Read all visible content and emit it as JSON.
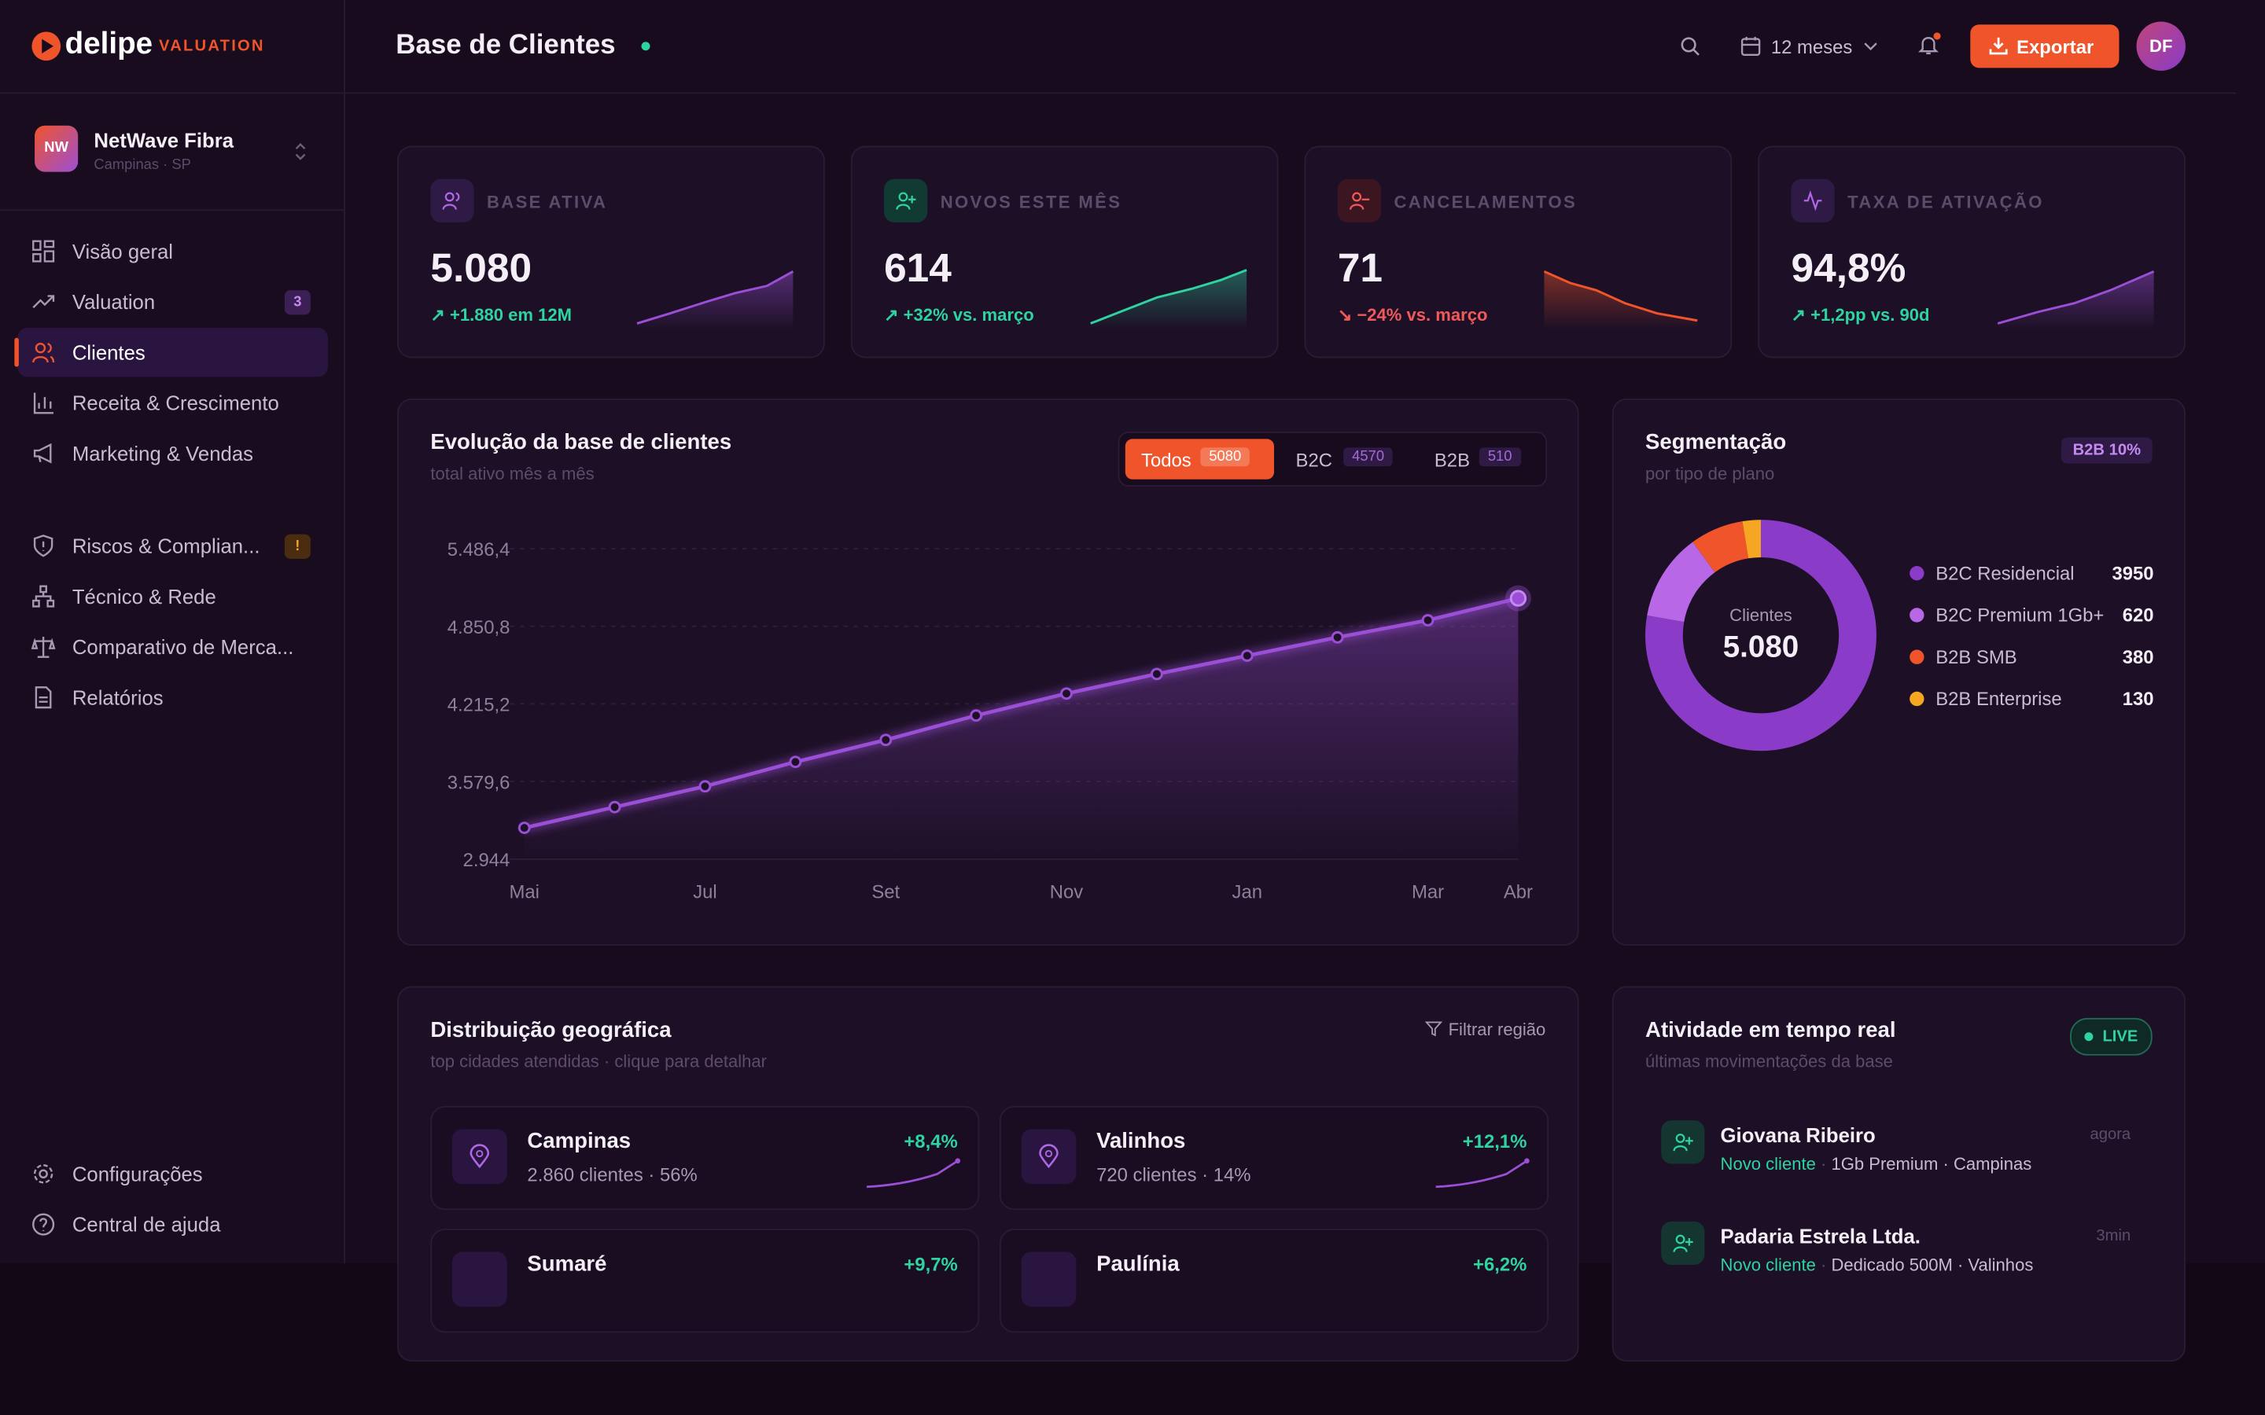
{
  "brand": {
    "name": "delipe",
    "tag": "VALUATION"
  },
  "org": {
    "logo": "NW",
    "name": "NetWave Fibra",
    "location": "Campinas · SP"
  },
  "nav": [
    {
      "label": "Visão geral"
    },
    {
      "label": "Valuation",
      "badge": 3
    },
    {
      "label": "Clientes"
    },
    {
      "label": "Receita & Crescimento"
    },
    {
      "label": "Marketing & Vendas"
    }
  ],
  "nav2": [
    {
      "label": "Riscos & Complian...",
      "badge": "!"
    },
    {
      "label": "Técnico & Rede"
    },
    {
      "label": "Comparativo de Merca..."
    },
    {
      "label": "Relatórios"
    }
  ],
  "nav_bottom": [
    {
      "label": "Configurações"
    },
    {
      "label": "Central de ajuda"
    }
  ],
  "header": {
    "title": "Base de Clientes",
    "period": "12 meses",
    "export": "Exportar",
    "user": "DF"
  },
  "kpis": [
    {
      "label": "BASE ATIVA",
      "value": "5.080",
      "delta": "+1.880 em 12M"
    },
    {
      "label": "NOVOS ESTE MÊS",
      "value": "614",
      "delta": "+32% vs. março"
    },
    {
      "label": "CANCELAMENTOS",
      "value": "71",
      "delta": "−24% vs. março"
    },
    {
      "label": "TAXA DE ATIVAÇÃO",
      "value": "94,8%",
      "delta": "+1,2pp vs. 90d"
    }
  ],
  "filters": [
    {
      "label": "Todos",
      "count": 5080
    },
    {
      "label": "B2C",
      "count": 4570
    },
    {
      "label": "B2B",
      "count": 510
    }
  ],
  "chart_data": [
    {
      "type": "line",
      "title": "Evolução da base de clientes",
      "subtitle": "total ativo mês a mês",
      "categories": [
        "Mai",
        null,
        "Jul",
        null,
        "Set",
        null,
        "Nov",
        null,
        "Jan",
        null,
        "Mar",
        "Abr"
      ],
      "values": [
        3200,
        3370,
        3540,
        3740,
        3920,
        4120,
        4300,
        4460,
        4610,
        4760,
        4900,
        5080
      ],
      "color": "#9b4fd6",
      "ylim": [
        2944,
        5486.4
      ],
      "yticks": [
        {
          "value": 2944,
          "label": "2.944"
        },
        {
          "value": 3579.6,
          "label": "3.579,6"
        },
        {
          "value": 4215.2,
          "label": "4.215,2"
        },
        {
          "value": 4850.8,
          "label": "4.850,8"
        },
        {
          "value": 5486.4,
          "label": "5.486,4"
        }
      ],
      "grid": true
    },
    {
      "type": "pie",
      "title": "Segmentação",
      "subtitle": "por tipo de plano",
      "badge": "B2B 10%",
      "center_label": "Clientes",
      "center_value": "5.080",
      "categories": [
        "B2C Residencial",
        "B2C Premium 1Gb+",
        "B2B SMB",
        "B2B Enterprise"
      ],
      "values": [
        3950,
        620,
        380,
        130
      ],
      "colors": [
        "#8a3bc8",
        "#b867e6",
        "#f0542a",
        "#f5a623"
      ]
    }
  ],
  "geo": {
    "title": "Distribuição geográfica",
    "subtitle": "top cidades atendidas · clique para detalhar",
    "filter": "Filtrar região",
    "cities": [
      {
        "name": "Campinas",
        "detail": "2.860 clientes · 56%",
        "growth": "+8,4%"
      },
      {
        "name": "Valinhos",
        "detail": "720 clientes · 14%",
        "growth": "+12,1%"
      },
      {
        "name": "Sumaré",
        "growth": "+9,7%"
      },
      {
        "name": "Paulínia",
        "growth": "+6,2%"
      }
    ]
  },
  "activity": {
    "title": "Atividade em tempo real",
    "subtitle": "últimas movimentações da base",
    "badge": "LIVE",
    "items": [
      {
        "name": "Giovana Ribeiro",
        "time": "agora",
        "type": "Novo cliente",
        "detail": "1Gb Premium · Campinas"
      },
      {
        "name": "Padaria Estrela Ltda.",
        "time": "3min",
        "type": "Novo cliente",
        "detail": "Dedicado 500M · Valinhos"
      }
    ]
  }
}
